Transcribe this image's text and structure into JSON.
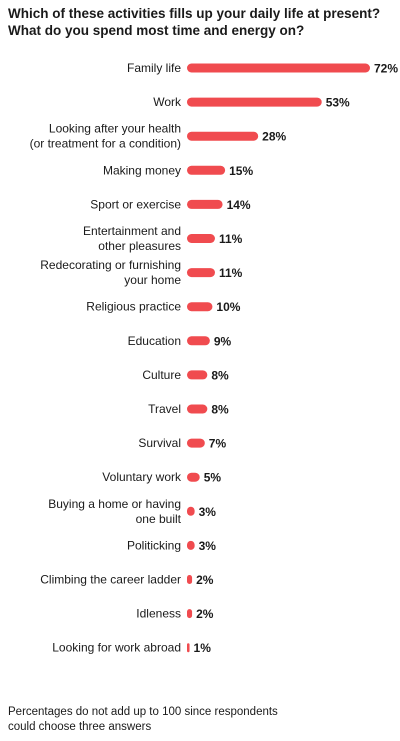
{
  "chart_data": {
    "type": "bar",
    "orientation": "horizontal",
    "title_lines": [
      "Which of these activities fills up your daily life at present?",
      "What do you spend most time and energy on?"
    ],
    "categories": [
      [
        "Family life"
      ],
      [
        "Work"
      ],
      [
        "Looking after your health",
        "(or treatment for a condition)"
      ],
      [
        "Making money"
      ],
      [
        "Sport or exercise"
      ],
      [
        "Entertainment and",
        "other pleasures"
      ],
      [
        "Redecorating or furnishing",
        "your home"
      ],
      [
        "Religious practice"
      ],
      [
        "Education"
      ],
      [
        "Culture"
      ],
      [
        "Travel"
      ],
      [
        "Survival"
      ],
      [
        "Voluntary work"
      ],
      [
        "Buying a home or having",
        "one built"
      ],
      [
        "Politicking"
      ],
      [
        "Climbing the career ladder"
      ],
      [
        "Idleness"
      ],
      [
        "Looking for work abroad"
      ]
    ],
    "values": [
      72,
      53,
      28,
      15,
      14,
      11,
      11,
      10,
      9,
      8,
      8,
      7,
      5,
      3,
      3,
      2,
      2,
      1
    ],
    "value_suffix": "%",
    "bar_color": "#f04b4f",
    "xlim": [
      0,
      72
    ],
    "grid": false,
    "legend": "none",
    "note_lines": [
      "Percentages do not add up to 100 since respondents",
      "could choose three answers"
    ]
  }
}
